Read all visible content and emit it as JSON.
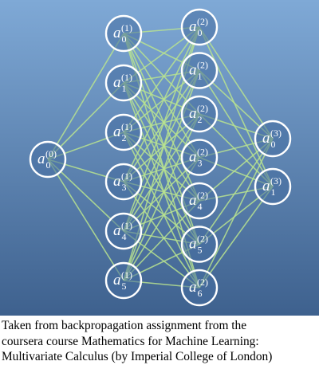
{
  "diagram": {
    "type": "neural-network",
    "colors": {
      "background_top": "#7fa9d6",
      "background_bottom": "#3e618e",
      "node_stroke": "#ffffff",
      "edge": "#b8e38f",
      "label": "#ffffff"
    },
    "layers": [
      {
        "index": "0",
        "nodes": [
          {
            "base": "a",
            "subscript": "0",
            "superscript": "(0)"
          }
        ]
      },
      {
        "index": "1",
        "nodes": [
          {
            "base": "a",
            "subscript": "0",
            "superscript": "(1)"
          },
          {
            "base": "a",
            "subscript": "1",
            "superscript": "(1)"
          },
          {
            "base": "a",
            "subscript": "2",
            "superscript": "(1)"
          },
          {
            "base": "a",
            "subscript": "3",
            "superscript": "(1)"
          },
          {
            "base": "a",
            "subscript": "4",
            "superscript": "(1)"
          },
          {
            "base": "a",
            "subscript": "5",
            "superscript": "(1)"
          }
        ]
      },
      {
        "index": "2",
        "nodes": [
          {
            "base": "a",
            "subscript": "0",
            "superscript": "(2)"
          },
          {
            "base": "a",
            "subscript": "1",
            "superscript": "(2)"
          },
          {
            "base": "a",
            "subscript": "2",
            "superscript": "(2)"
          },
          {
            "base": "a",
            "subscript": "3",
            "superscript": "(2)"
          },
          {
            "base": "a",
            "subscript": "4",
            "superscript": "(2)"
          },
          {
            "base": "a",
            "subscript": "5",
            "superscript": "(2)"
          },
          {
            "base": "a",
            "subscript": "6",
            "superscript": "(2)"
          }
        ]
      },
      {
        "index": "3",
        "nodes": [
          {
            "base": "a",
            "subscript": "0",
            "superscript": "(3)"
          },
          {
            "base": "a",
            "subscript": "1",
            "superscript": "(3)"
          }
        ]
      }
    ],
    "connectivity": "fully-connected"
  },
  "caption": {
    "lines": [
      "Taken from backpropagation assignment from the",
      "coursera course Mathematics for Machine Learning:",
      "Multivariate Calculus (by Imperial College of London)"
    ]
  }
}
